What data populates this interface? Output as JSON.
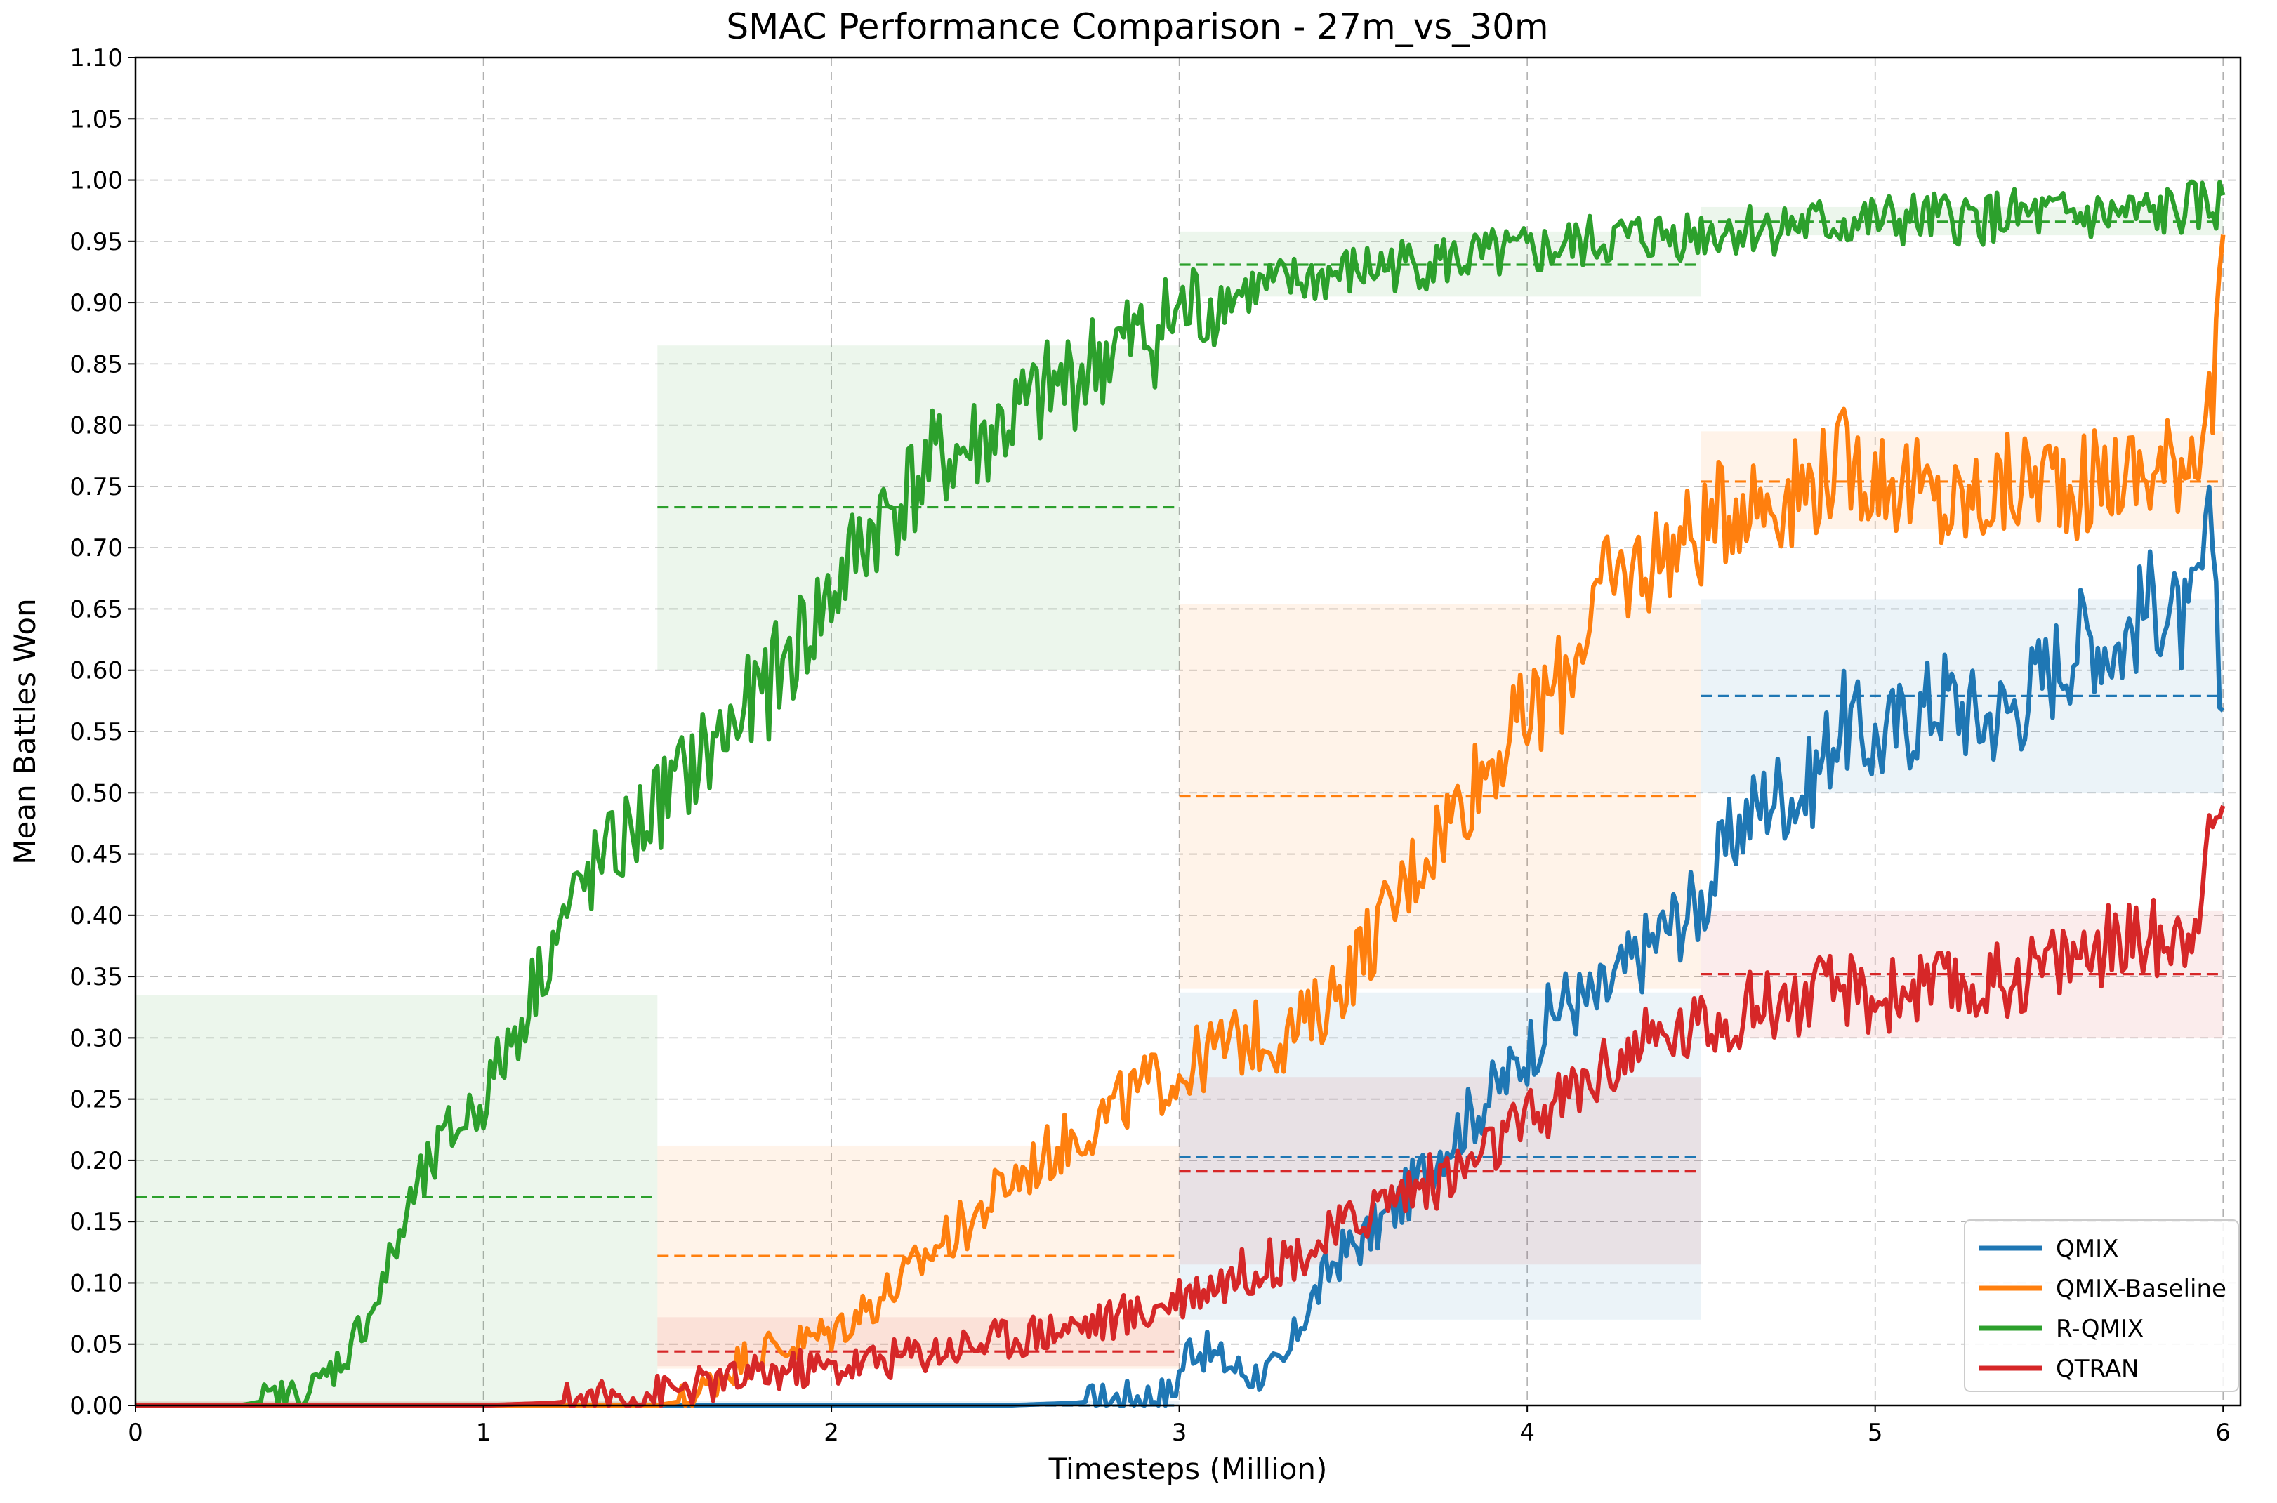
{
  "chart_data": {
    "type": "line",
    "title": "SMAC Performance Comparison - 27m_vs_30m",
    "xlabel": "Timesteps (Million)",
    "ylabel": "Mean Battles Won",
    "xlim": [
      0,
      6.05
    ],
    "ylim": [
      0,
      1.1
    ],
    "xticks": [
      "0",
      "1",
      "2",
      "3",
      "4",
      "5",
      "6"
    ],
    "yticks": [
      "0.00",
      "0.05",
      "0.10",
      "0.15",
      "0.20",
      "0.25",
      "0.30",
      "0.35",
      "0.40",
      "0.45",
      "0.50",
      "0.55",
      "0.60",
      "0.65",
      "0.70",
      "0.75",
      "0.80",
      "0.85",
      "0.90",
      "0.95",
      "1.00",
      "1.05",
      "1.10"
    ],
    "grid": true,
    "legend_position": "lower right",
    "series": [
      {
        "name": "QMIX",
        "color": "#1f77b4",
        "points": [
          [
            0,
            0
          ],
          [
            0.5,
            0
          ],
          [
            1.0,
            0
          ],
          [
            1.5,
            0
          ],
          [
            2.0,
            0
          ],
          [
            2.5,
            0
          ],
          [
            2.7,
            0.002
          ],
          [
            2.9,
            0.008
          ],
          [
            2.98,
            0.01
          ],
          [
            3.03,
            0.05
          ],
          [
            3.1,
            0.04
          ],
          [
            3.2,
            0.025
          ],
          [
            3.3,
            0.03
          ],
          [
            3.35,
            0.07
          ],
          [
            3.45,
            0.12
          ],
          [
            3.55,
            0.14
          ],
          [
            3.65,
            0.17
          ],
          [
            3.75,
            0.21
          ],
          [
            3.85,
            0.24
          ],
          [
            3.95,
            0.27
          ],
          [
            4.0,
            0.29
          ],
          [
            4.1,
            0.33
          ],
          [
            4.2,
            0.33
          ],
          [
            4.3,
            0.36
          ],
          [
            4.4,
            0.39
          ],
          [
            4.5,
            0.41
          ],
          [
            4.6,
            0.47
          ],
          [
            4.7,
            0.5
          ],
          [
            4.8,
            0.5
          ],
          [
            4.9,
            0.56
          ],
          [
            5.0,
            0.54
          ],
          [
            5.1,
            0.56
          ],
          [
            5.2,
            0.58
          ],
          [
            5.3,
            0.56
          ],
          [
            5.4,
            0.57
          ],
          [
            5.5,
            0.6
          ],
          [
            5.6,
            0.63
          ],
          [
            5.7,
            0.62
          ],
          [
            5.8,
            0.66
          ],
          [
            5.9,
            0.63
          ],
          [
            5.97,
            0.72
          ],
          [
            6.0,
            0.56
          ]
        ],
        "bands": [
          {
            "x": [
              0,
              1.5
            ],
            "mean": 0.0,
            "range": [
              0.0,
              0.003
            ]
          },
          {
            "x": [
              1.5,
              3.0
            ],
            "mean": 0.0,
            "range": [
              0.0,
              0.004
            ]
          },
          {
            "x": [
              3.0,
              4.5
            ],
            "mean": 0.203,
            "range": [
              0.07,
              0.337
            ]
          },
          {
            "x": [
              4.5,
              6.0
            ],
            "mean": 0.579,
            "range": [
              0.5,
              0.658
            ]
          }
        ]
      },
      {
        "name": "QMIX-Baseline",
        "color": "#ff7f0e",
        "points": [
          [
            0,
            0
          ],
          [
            0.5,
            0
          ],
          [
            1.0,
            0
          ],
          [
            1.5,
            0
          ],
          [
            1.6,
            0.005
          ],
          [
            1.7,
            0.03
          ],
          [
            1.8,
            0.045
          ],
          [
            1.9,
            0.05
          ],
          [
            2.0,
            0.06
          ],
          [
            2.1,
            0.08
          ],
          [
            2.2,
            0.1
          ],
          [
            2.3,
            0.13
          ],
          [
            2.4,
            0.15
          ],
          [
            2.5,
            0.18
          ],
          [
            2.6,
            0.2
          ],
          [
            2.7,
            0.22
          ],
          [
            2.8,
            0.24
          ],
          [
            2.9,
            0.26
          ],
          [
            3.0,
            0.27
          ],
          [
            3.1,
            0.29
          ],
          [
            3.2,
            0.3
          ],
          [
            3.3,
            0.3
          ],
          [
            3.4,
            0.32
          ],
          [
            3.5,
            0.36
          ],
          [
            3.6,
            0.4
          ],
          [
            3.7,
            0.45
          ],
          [
            3.8,
            0.49
          ],
          [
            3.9,
            0.53
          ],
          [
            4.0,
            0.56
          ],
          [
            4.1,
            0.59
          ],
          [
            4.2,
            0.66
          ],
          [
            4.3,
            0.68
          ],
          [
            4.4,
            0.7
          ],
          [
            4.5,
            0.71
          ],
          [
            4.6,
            0.74
          ],
          [
            4.7,
            0.74
          ],
          [
            4.8,
            0.75
          ],
          [
            4.9,
            0.77
          ],
          [
            5.0,
            0.76
          ],
          [
            5.1,
            0.75
          ],
          [
            5.2,
            0.73
          ],
          [
            5.3,
            0.74
          ],
          [
            5.4,
            0.75
          ],
          [
            5.5,
            0.76
          ],
          [
            5.6,
            0.75
          ],
          [
            5.7,
            0.76
          ],
          [
            5.8,
            0.76
          ],
          [
            5.9,
            0.78
          ],
          [
            5.97,
            0.82
          ],
          [
            6.0,
            0.95
          ]
        ],
        "bands": [
          {
            "x": [
              0,
              1.5
            ],
            "mean": 0.0,
            "range": [
              0.0,
              0.003
            ]
          },
          {
            "x": [
              1.5,
              3.0
            ],
            "mean": 0.122,
            "range": [
              0.03,
              0.212
            ]
          },
          {
            "x": [
              3.0,
              4.5
            ],
            "mean": 0.497,
            "range": [
              0.34,
              0.654
            ]
          },
          {
            "x": [
              4.5,
              6.0
            ],
            "mean": 0.754,
            "range": [
              0.715,
              0.795
            ]
          }
        ]
      },
      {
        "name": "R-QMIX",
        "color": "#2ca02c",
        "points": [
          [
            0,
            0
          ],
          [
            0.3,
            0
          ],
          [
            0.4,
            0.005
          ],
          [
            0.5,
            0.01
          ],
          [
            0.6,
            0.04
          ],
          [
            0.7,
            0.09
          ],
          [
            0.8,
            0.17
          ],
          [
            0.9,
            0.22
          ],
          [
            1.0,
            0.25
          ],
          [
            1.1,
            0.31
          ],
          [
            1.2,
            0.38
          ],
          [
            1.3,
            0.43
          ],
          [
            1.4,
            0.46
          ],
          [
            1.5,
            0.49
          ],
          [
            1.6,
            0.52
          ],
          [
            1.7,
            0.55
          ],
          [
            1.8,
            0.58
          ],
          [
            1.9,
            0.62
          ],
          [
            2.0,
            0.66
          ],
          [
            2.1,
            0.71
          ],
          [
            2.2,
            0.74
          ],
          [
            2.3,
            0.77
          ],
          [
            2.4,
            0.78
          ],
          [
            2.5,
            0.8
          ],
          [
            2.6,
            0.82
          ],
          [
            2.7,
            0.84
          ],
          [
            2.8,
            0.86
          ],
          [
            2.9,
            0.87
          ],
          [
            3.0,
            0.89
          ],
          [
            3.2,
            0.91
          ],
          [
            3.4,
            0.92
          ],
          [
            3.6,
            0.93
          ],
          [
            3.8,
            0.935
          ],
          [
            4.0,
            0.94
          ],
          [
            4.2,
            0.95
          ],
          [
            4.4,
            0.955
          ],
          [
            4.6,
            0.96
          ],
          [
            4.8,
            0.963
          ],
          [
            5.0,
            0.966
          ],
          [
            5.2,
            0.968
          ],
          [
            5.4,
            0.97
          ],
          [
            5.6,
            0.97
          ],
          [
            5.8,
            0.972
          ],
          [
            6.0,
            0.98
          ]
        ],
        "bands": [
          {
            "x": [
              0,
              1.5
            ],
            "mean": 0.17,
            "range": [
              0.0,
              0.335
            ]
          },
          {
            "x": [
              1.5,
              3.0
            ],
            "mean": 0.733,
            "range": [
              0.6,
              0.865
            ]
          },
          {
            "x": [
              3.0,
              4.5
            ],
            "mean": 0.931,
            "range": [
              0.905,
              0.958
            ]
          },
          {
            "x": [
              4.5,
              6.0
            ],
            "mean": 0.966,
            "range": [
              0.955,
              0.978
            ]
          }
        ]
      },
      {
        "name": "QTRAN",
        "color": "#d62728",
        "points": [
          [
            0,
            0
          ],
          [
            0.5,
            0
          ],
          [
            1.0,
            0
          ],
          [
            1.2,
            0.002
          ],
          [
            1.3,
            0.005
          ],
          [
            1.4,
            0.007
          ],
          [
            1.5,
            0.01
          ],
          [
            1.6,
            0.015
          ],
          [
            1.7,
            0.02
          ],
          [
            1.8,
            0.025
          ],
          [
            1.9,
            0.03
          ],
          [
            2.0,
            0.03
          ],
          [
            2.1,
            0.035
          ],
          [
            2.2,
            0.04
          ],
          [
            2.3,
            0.045
          ],
          [
            2.4,
            0.05
          ],
          [
            2.5,
            0.055
          ],
          [
            2.6,
            0.06
          ],
          [
            2.7,
            0.065
          ],
          [
            2.8,
            0.07
          ],
          [
            2.9,
            0.075
          ],
          [
            3.0,
            0.09
          ],
          [
            3.1,
            0.1
          ],
          [
            3.2,
            0.11
          ],
          [
            3.3,
            0.12
          ],
          [
            3.4,
            0.13
          ],
          [
            3.5,
            0.15
          ],
          [
            3.6,
            0.17
          ],
          [
            3.7,
            0.18
          ],
          [
            3.8,
            0.19
          ],
          [
            3.9,
            0.21
          ],
          [
            4.0,
            0.23
          ],
          [
            4.1,
            0.25
          ],
          [
            4.2,
            0.27
          ],
          [
            4.3,
            0.29
          ],
          [
            4.4,
            0.3
          ],
          [
            4.5,
            0.31
          ],
          [
            4.6,
            0.32
          ],
          [
            4.7,
            0.33
          ],
          [
            4.8,
            0.33
          ],
          [
            4.9,
            0.34
          ],
          [
            5.0,
            0.33
          ],
          [
            5.1,
            0.34
          ],
          [
            5.2,
            0.34
          ],
          [
            5.3,
            0.34
          ],
          [
            5.4,
            0.35
          ],
          [
            5.5,
            0.36
          ],
          [
            5.6,
            0.37
          ],
          [
            5.7,
            0.38
          ],
          [
            5.8,
            0.38
          ],
          [
            5.9,
            0.39
          ],
          [
            6.0,
            0.49
          ]
        ],
        "bands": [
          {
            "x": [
              0,
              1.5
            ],
            "mean": 0.0,
            "range": [
              0.0,
              0.004
            ]
          },
          {
            "x": [
              1.5,
              3.0
            ],
            "mean": 0.044,
            "range": [
              0.032,
              0.072
            ]
          },
          {
            "x": [
              3.0,
              4.5
            ],
            "mean": 0.191,
            "range": [
              0.115,
              0.268
            ]
          },
          {
            "x": [
              4.5,
              6.0
            ],
            "mean": 0.352,
            "range": [
              0.3,
              0.404
            ]
          }
        ]
      }
    ]
  }
}
